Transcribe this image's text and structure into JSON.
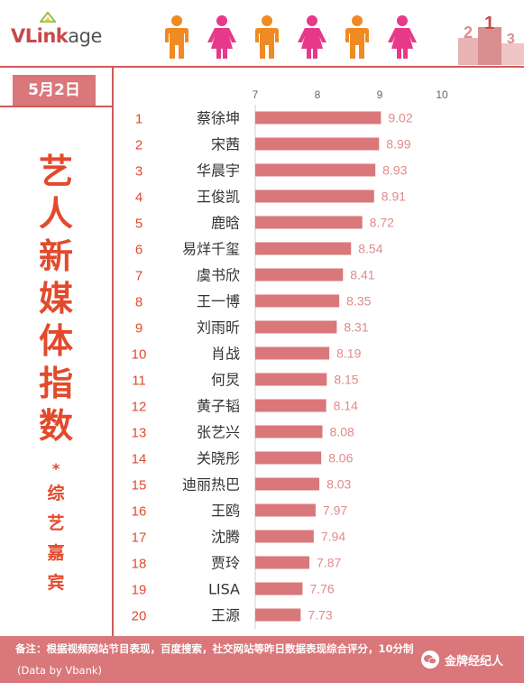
{
  "brand": {
    "logo_text_v": "V",
    "logo_text_link": "Link",
    "logo_text_age": "age"
  },
  "header_icons": [
    "male-figure-icon",
    "female-figure-icon",
    "male-figure-icon",
    "female-figure-icon",
    "male-figure-icon",
    "female-figure-icon"
  ],
  "podium": {
    "label_1": "1",
    "label_2": "2",
    "label_3": "3"
  },
  "date_tab": "5月2日",
  "side_title": [
    "艺",
    "人",
    "新",
    "媒",
    "体",
    "指",
    "数"
  ],
  "side_star": "*",
  "side_subtitle": [
    "综",
    "艺",
    "嘉",
    "宾"
  ],
  "colors": {
    "accent": "#d05a5b",
    "bar": "#d9777a",
    "title": "#e24a2c",
    "value_label": "#e08a8c",
    "footer_bg": "#d9777a"
  },
  "chart_data": {
    "type": "bar",
    "orientation": "horizontal",
    "title": "艺人新媒体指数*综艺嘉宾",
    "xlim": [
      7,
      10
    ],
    "xticks": [
      "7",
      "8",
      "9",
      "10"
    ],
    "ranks": [
      "1",
      "2",
      "3",
      "4",
      "5",
      "6",
      "7",
      "8",
      "9",
      "10",
      "11",
      "12",
      "13",
      "14",
      "15",
      "16",
      "17",
      "18",
      "19",
      "20"
    ],
    "categories": [
      "蔡徐坤",
      "宋茜",
      "华晨宇",
      "王俊凯",
      "鹿晗",
      "易烊千玺",
      "虞书欣",
      "王一博",
      "刘雨昕",
      "肖战",
      "何炅",
      "黄子韬",
      "张艺兴",
      "关晓彤",
      "迪丽热巴",
      "王鸥",
      "沈腾",
      "贾玲",
      "LISA",
      "王源"
    ],
    "values": [
      9.02,
      8.99,
      8.93,
      8.91,
      8.72,
      8.54,
      8.41,
      8.35,
      8.31,
      8.19,
      8.15,
      8.14,
      8.08,
      8.06,
      8.03,
      7.97,
      7.94,
      7.87,
      7.76,
      7.73
    ],
    "value_labels": [
      "9.02",
      "8.99",
      "8.93",
      "8.91",
      "8.72",
      "8.54",
      "8.41",
      "8.35",
      "8.31",
      "8.19",
      "8.15",
      "8.14",
      "8.08",
      "8.06",
      "8.03",
      "7.97",
      "7.94",
      "7.87",
      "7.76",
      "7.73"
    ],
    "grid": false
  },
  "footer": {
    "note": "备注：根据视频网站节目表现，百度搜索，社交网站等昨日数据表现综合评分，10分制",
    "source": "(Data by Vbank)",
    "watermark": "金牌经纪人"
  }
}
